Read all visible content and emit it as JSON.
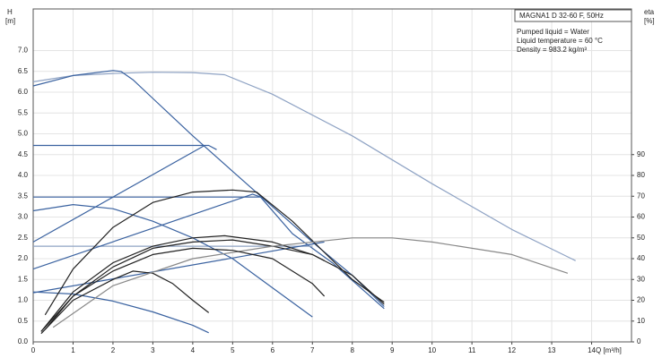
{
  "chart_data": {
    "type": "line",
    "xlabel": "Q [m³/h]",
    "ylabel": "H",
    "yunit": "[m]",
    "y2label": "eta",
    "y2unit": "[%]",
    "annotations": [
      "MAGNA1 D 32-60 F, 50Hz",
      "Pumped liquid = Water",
      "Liquid temperature = 60 °C",
      "Density = 983.2 kg/m³"
    ],
    "xlim": [
      0,
      15
    ],
    "ylim": [
      0,
      8
    ],
    "y2lim": [
      0,
      160
    ],
    "grid": true,
    "xticks": [
      0,
      1,
      2,
      3,
      4,
      5,
      6,
      7,
      8,
      9,
      10,
      11,
      12,
      13,
      14
    ],
    "yticks": [
      {
        "value": 0,
        "label": "0.0"
      },
      {
        "value": 0.5,
        "label": "0.5"
      },
      {
        "value": 1,
        "label": "1.0"
      },
      {
        "value": 1.5,
        "label": "1.5"
      },
      {
        "value": 2,
        "label": "2.0"
      },
      {
        "value": 2.5,
        "label": "2.5"
      },
      {
        "value": 3,
        "label": "3.0"
      },
      {
        "value": 3.5,
        "label": "3.5"
      },
      {
        "value": 4,
        "label": "4.0"
      },
      {
        "value": 4.5,
        "label": "4.5"
      },
      {
        "value": 5,
        "label": "5.0"
      },
      {
        "value": 5.5,
        "label": "5.5"
      },
      {
        "value": 6,
        "label": "6.0"
      },
      {
        "value": 6.5,
        "label": "6.5"
      },
      {
        "value": 7,
        "label": "7.0"
      }
    ],
    "y2ticks": [
      0,
      10,
      20,
      30,
      40,
      50,
      60,
      70,
      80,
      90
    ],
    "series": [
      {
        "color": "#8fa3c4",
        "x": [
          0,
          1,
          2,
          3,
          4,
          4.8,
          6,
          8,
          10,
          12,
          13.6
        ],
        "values": [
          6.25,
          6.4,
          6.45,
          6.48,
          6.47,
          6.42,
          5.95,
          4.95,
          3.8,
          2.7,
          1.95
        ]
      },
      {
        "color": "#3a62a0",
        "x": [
          0,
          1,
          2,
          2.2,
          2.5,
          3,
          4,
          5,
          6,
          7,
          8,
          8.8
        ],
        "values": [
          6.15,
          6.4,
          6.52,
          6.5,
          6.3,
          5.85,
          4.95,
          4.1,
          3.25,
          2.4,
          1.6,
          0.85
        ]
      },
      {
        "color": "#3a62a0",
        "x": [
          0,
          4.4,
          4.6
        ],
        "values": [
          4.72,
          4.72,
          4.62
        ]
      },
      {
        "color": "#3a62a0",
        "x": [
          0,
          5.7,
          6.5,
          7.5,
          8.8
        ],
        "values": [
          3.48,
          3.48,
          2.6,
          1.9,
          0.8
        ]
      },
      {
        "color": "#8fa3c4",
        "x": [
          0,
          7
        ],
        "values": [
          2.3,
          2.3
        ]
      },
      {
        "color": "#3a62a0",
        "x": [
          0,
          4.3
        ],
        "values": [
          2.4,
          4.72
        ]
      },
      {
        "color": "#3a62a0",
        "x": [
          0,
          5.5,
          5.7
        ],
        "values": [
          1.75,
          3.55,
          3.48
        ]
      },
      {
        "color": "#3a62a0",
        "x": [
          0,
          7.3
        ],
        "values": [
          1.18,
          2.4
        ]
      },
      {
        "color": "#3a62a0",
        "x": [
          0,
          1,
          2,
          3,
          4,
          5,
          6,
          7
        ],
        "values": [
          3.15,
          3.3,
          3.2,
          2.9,
          2.5,
          2.0,
          1.3,
          0.6
        ]
      },
      {
        "color": "#3a62a0",
        "x": [
          0,
          1,
          2,
          3,
          4,
          4.4
        ],
        "values": [
          1.2,
          1.15,
          0.98,
          0.72,
          0.4,
          0.22
        ]
      },
      {
        "color": "#222222",
        "axis": "y2",
        "x": [
          0.3,
          1,
          2,
          3,
          4,
          5,
          5.6,
          6.5,
          7.3,
          8,
          8.8
        ],
        "values": [
          13,
          35,
          55,
          67,
          72,
          73,
          72,
          58,
          43,
          30,
          19
        ]
      },
      {
        "color": "#222222",
        "axis": "y2",
        "x": [
          0.2,
          1,
          2,
          3,
          4,
          4.8,
          6,
          7,
          8,
          8.8
        ],
        "values": [
          5,
          24,
          38,
          46,
          50,
          51,
          48,
          42,
          32,
          18
        ]
      },
      {
        "color": "#222222",
        "axis": "y2",
        "x": [
          0.2,
          1,
          2,
          3,
          4,
          5,
          6,
          7,
          7.3
        ],
        "values": [
          5,
          22,
          36,
          45,
          48,
          49,
          46,
          42,
          39
        ]
      },
      {
        "color": "#222222",
        "axis": "y2",
        "x": [
          0.2,
          1,
          2,
          2.5,
          3,
          3.5,
          4,
          4.4
        ],
        "values": [
          4,
          20,
          30,
          34,
          33,
          28,
          20,
          14
        ]
      },
      {
        "color": "#888888",
        "axis": "y2",
        "x": [
          0.5,
          2,
          4,
          6,
          8,
          9,
          10,
          12,
          13.4
        ],
        "values": [
          7,
          27,
          40,
          46,
          50,
          50,
          48,
          42,
          33
        ]
      },
      {
        "color": "#222222",
        "axis": "y2",
        "x": [
          0.3,
          1,
          2,
          3,
          4,
          5,
          6,
          7,
          7.3
        ],
        "values": [
          6,
          22,
          34,
          42,
          45,
          44,
          40,
          28,
          22
        ]
      }
    ]
  }
}
